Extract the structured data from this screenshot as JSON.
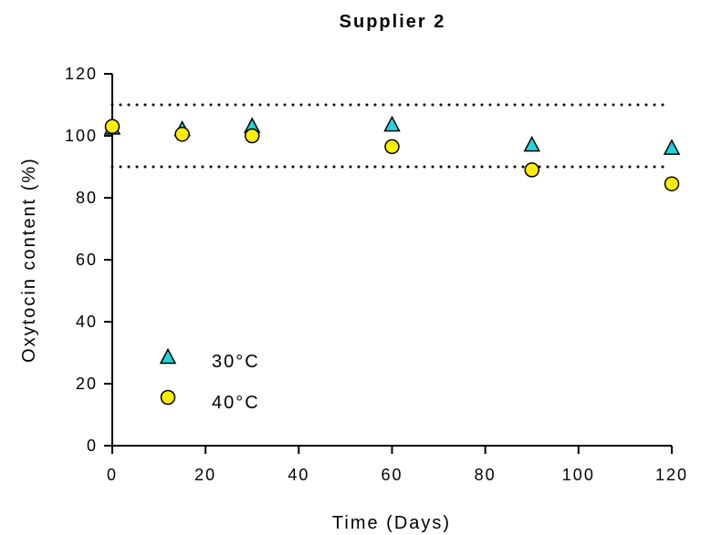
{
  "chart_data": {
    "type": "scatter",
    "title": "Supplier 2",
    "xlabel": "Time (Days)",
    "ylabel": "Oxytocin content (%)",
    "xlim": [
      0,
      120
    ],
    "ylim": [
      0,
      120
    ],
    "xticks": [
      "0",
      "20",
      "40",
      "60",
      "80",
      "100",
      "120"
    ],
    "yticks": [
      "0",
      "20",
      "40",
      "60",
      "80",
      "100",
      "120"
    ],
    "grid": false,
    "legend_position": "bottom-left",
    "reference_lines": [
      {
        "axis": "y",
        "value": 110,
        "style": "dotted"
      },
      {
        "axis": "y",
        "value": 90,
        "style": "dotted"
      }
    ],
    "series": [
      {
        "name": "30°C",
        "marker": "triangle",
        "color": "#22d3d8",
        "x": [
          0,
          15,
          30,
          60,
          90,
          120
        ],
        "y": [
          102.5,
          102,
          103,
          103.5,
          97,
          96
        ]
      },
      {
        "name": "40°C",
        "marker": "circle",
        "color": "#ffee00",
        "x": [
          0,
          15,
          30,
          60,
          90,
          120
        ],
        "y": [
          103,
          100.5,
          100,
          96.5,
          89,
          84.5
        ]
      }
    ]
  }
}
